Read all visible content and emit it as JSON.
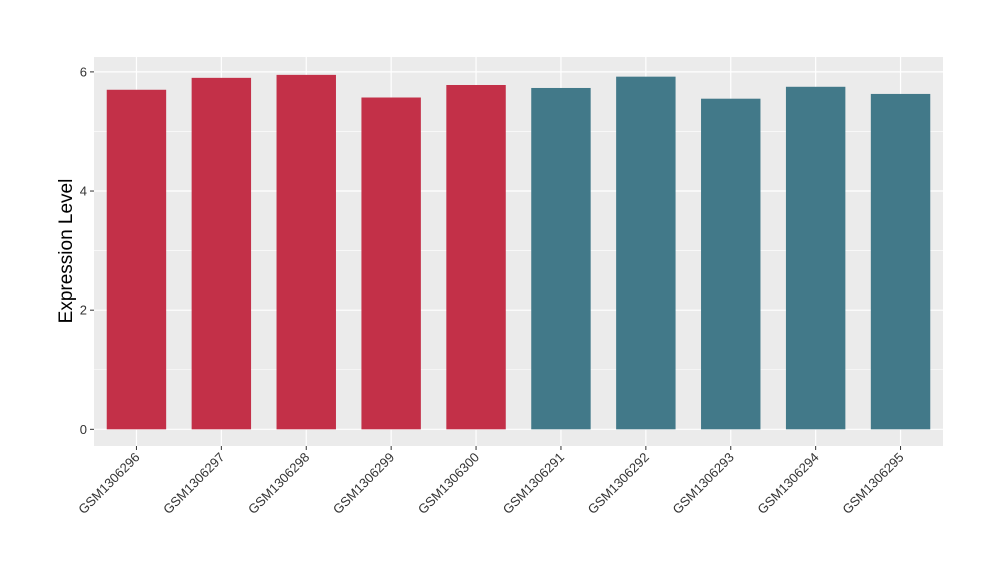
{
  "chart_data": {
    "type": "bar",
    "title": "",
    "xlabel": "",
    "ylabel": "Expression Level",
    "ylim": [
      -0.28,
      6.25
    ],
    "yticks": [
      0,
      2,
      4,
      6
    ],
    "ytick_labels": [
      "0",
      "2",
      "4",
      "6"
    ],
    "categories": [
      "GSM1306296",
      "GSM1306297",
      "GSM1306298",
      "GSM1306299",
      "GSM1306300",
      "GSM1306291",
      "GSM1306292",
      "GSM1306293",
      "GSM1306294",
      "GSM1306295"
    ],
    "values": [
      5.7,
      5.9,
      5.95,
      5.57,
      5.78,
      5.73,
      5.92,
      5.55,
      5.75,
      5.63
    ],
    "bar_colors": [
      "#c33048",
      "#c33048",
      "#c33048",
      "#c33048",
      "#c33048",
      "#427989",
      "#427989",
      "#427989",
      "#427989",
      "#427989"
    ],
    "panel_background": "#ebebeb",
    "grid": true,
    "grid_color": "#ffffff",
    "legend": "none"
  }
}
